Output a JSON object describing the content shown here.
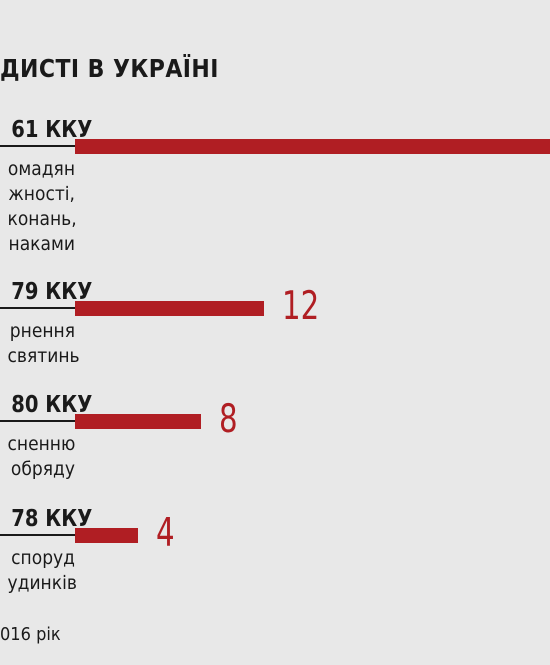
{
  "title": "ДИСТІ В УКРАЇНІ",
  "footnote": "016 рік",
  "chart_data": {
    "type": "bar",
    "orientation": "horizontal",
    "categories": [
      {
        "head": "61 ККУ",
        "desc": [
          "омадян",
          "жності,",
          "конань,",
          "наками"
        ]
      },
      {
        "head": "79 ККУ",
        "desc": [
          "рнення",
          "святинь"
        ]
      },
      {
        "head": "80 ККУ",
        "desc": [
          "сненню",
          "обряду"
        ]
      },
      {
        "head": "78 ККУ",
        "desc": [
          "споруд",
          "удинків"
        ]
      }
    ],
    "values": [
      null,
      12,
      8,
      4
    ],
    "value_labels": [
      "",
      "12",
      "8",
      "4"
    ],
    "bar_color": "#b01e23"
  }
}
